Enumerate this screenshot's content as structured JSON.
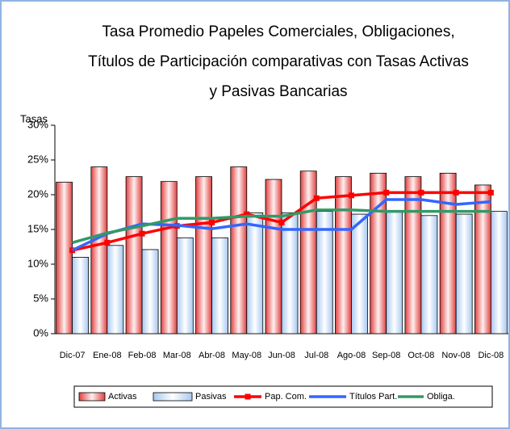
{
  "chart_data": {
    "type": "bar",
    "title": [
      "Tasa Promedio Papeles Comerciales, Obligaciones,",
      "Títulos de Participación comparativas con Tasas Activas",
      "y Pasivas Bancarias"
    ],
    "y_label": "Tasas",
    "categories": [
      "Dic-07",
      "Ene-08",
      "Feb-08",
      "Mar-08",
      "Abr-08",
      "May-08",
      "Jun-08",
      "Jul-08",
      "Ago-08",
      "Sep-08",
      "Oct-08",
      "Nov-08",
      "Dic-08"
    ],
    "series": [
      {
        "name": "Activas",
        "kind": "bar",
        "color": "#e04040",
        "values": [
          21.8,
          24.0,
          22.6,
          21.9,
          22.6,
          24.0,
          22.2,
          23.4,
          22.6,
          23.1,
          22.6,
          23.1,
          21.4
        ]
      },
      {
        "name": "Pasivas",
        "kind": "bar",
        "color": "#a8c8f0",
        "values": [
          11.0,
          12.7,
          12.1,
          13.8,
          13.8,
          17.4,
          17.4,
          17.6,
          17.2,
          17.6,
          17.0,
          17.2,
          17.6
        ]
      },
      {
        "name": "Pap. Com.",
        "kind": "line",
        "marker": "square",
        "color": "#ff0000",
        "values": [
          12.0,
          13.1,
          14.4,
          15.5,
          16.0,
          17.2,
          16.0,
          19.5,
          19.9,
          20.3,
          20.3,
          20.3,
          20.3
        ]
      },
      {
        "name": "Títulos Part.",
        "kind": "line",
        "color": "#3366ff",
        "values": [
          12.0,
          14.4,
          15.8,
          15.6,
          15.1,
          15.8,
          15.0,
          15.0,
          15.0,
          19.3,
          19.3,
          18.6,
          19.0
        ]
      },
      {
        "name": "Obliga.",
        "kind": "line",
        "color": "#339966",
        "values": [
          13.1,
          14.5,
          15.5,
          16.6,
          16.6,
          16.9,
          16.9,
          17.8,
          17.8,
          17.6,
          17.6,
          17.6,
          17.6
        ]
      }
    ],
    "ylim": [
      0,
      30
    ],
    "yticks": [
      {
        "value": 0,
        "label": "0%"
      },
      {
        "value": 5,
        "label": "5%"
      },
      {
        "value": 10,
        "label": "10%"
      },
      {
        "value": 15,
        "label": "15%"
      },
      {
        "value": 20,
        "label": "20%"
      },
      {
        "value": 25,
        "label": "25%"
      },
      {
        "value": 30,
        "label": "30%"
      }
    ],
    "legend": "bottom"
  }
}
